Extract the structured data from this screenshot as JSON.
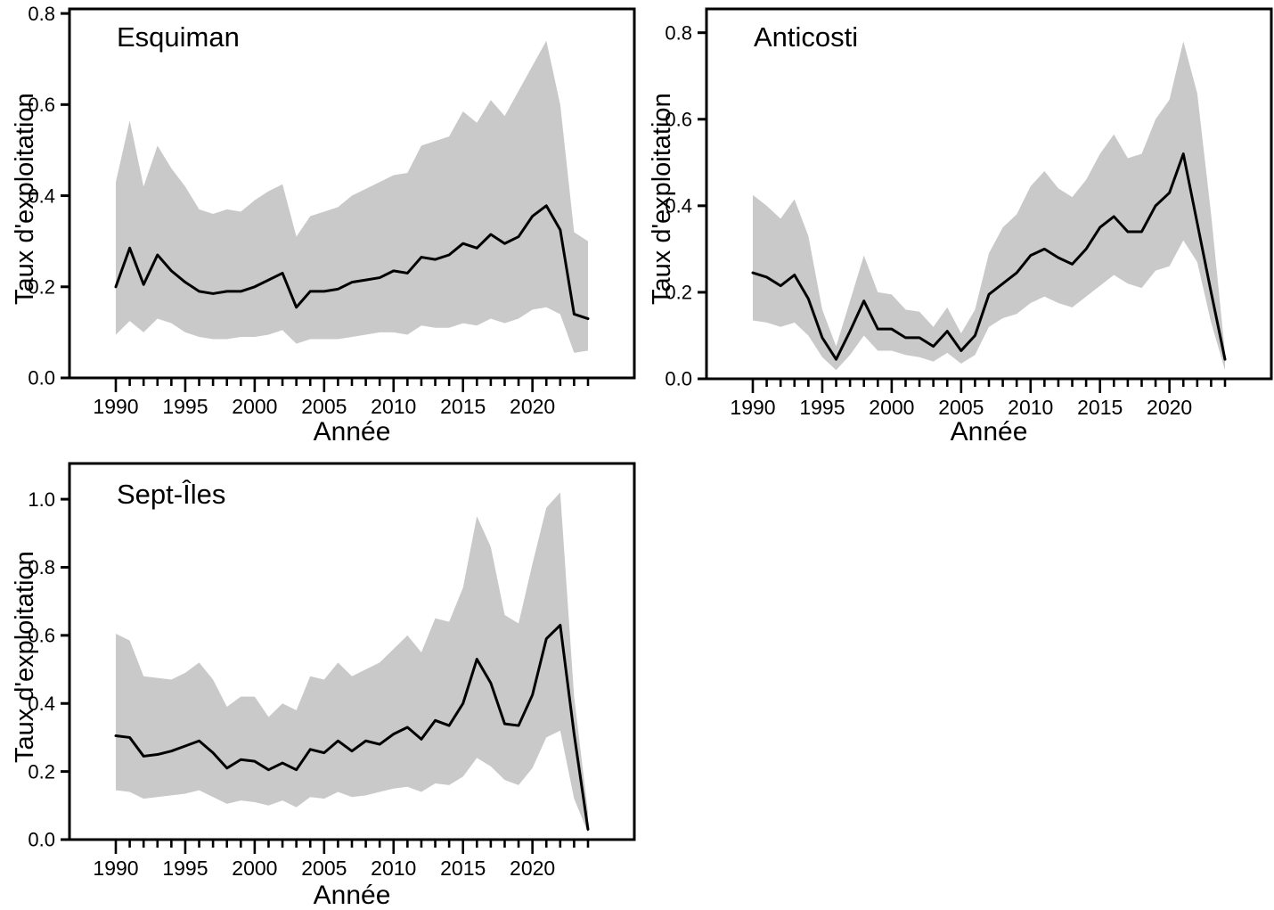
{
  "figure": {
    "description": "Three-panel scientific figure: exploitation rate time series with grey confidence bands; bottom-right quadrant empty",
    "background": "#ffffff",
    "band_color": "#c9c9c9",
    "line_color": "#000000",
    "axis_color": "#000000"
  },
  "chart_data": [
    {
      "type": "line",
      "title": "Esquiman",
      "xlabel": "Année",
      "ylabel": "Taux d'exploitation",
      "grid": false,
      "legend_position": "none",
      "ylim": [
        0,
        0.81
      ],
      "yticks": [
        0.0,
        0.2,
        0.4,
        0.6,
        0.8
      ],
      "xticks_labeled": [
        1990,
        1995,
        2000,
        2005,
        2010,
        2015,
        2020
      ],
      "xticks_minor_every": 1,
      "x": [
        1990,
        1991,
        1992,
        1993,
        1994,
        1995,
        1996,
        1997,
        1998,
        1999,
        2000,
        2001,
        2002,
        2003,
        2004,
        2005,
        2006,
        2007,
        2008,
        2009,
        2010,
        2011,
        2012,
        2013,
        2014,
        2015,
        2016,
        2017,
        2018,
        2019,
        2020,
        2021,
        2022,
        2023,
        2024
      ],
      "series": [
        {
          "name": "mean",
          "values": [
            0.2,
            0.285,
            0.205,
            0.27,
            0.235,
            0.21,
            0.19,
            0.185,
            0.19,
            0.19,
            0.2,
            0.215,
            0.23,
            0.155,
            0.19,
            0.19,
            0.195,
            0.21,
            0.215,
            0.22,
            0.235,
            0.23,
            0.265,
            0.26,
            0.27,
            0.295,
            0.285,
            0.315,
            0.295,
            0.31,
            0.355,
            0.378,
            0.325,
            0.14,
            0.13
          ]
        },
        {
          "name": "upper",
          "values": [
            0.43,
            0.565,
            0.42,
            0.51,
            0.46,
            0.42,
            0.37,
            0.36,
            0.37,
            0.365,
            0.39,
            0.41,
            0.425,
            0.31,
            0.355,
            0.365,
            0.375,
            0.4,
            0.415,
            0.43,
            0.445,
            0.45,
            0.51,
            0.52,
            0.53,
            0.585,
            0.56,
            0.61,
            0.575,
            0.63,
            0.685,
            0.74,
            0.6,
            0.32,
            0.3
          ]
        },
        {
          "name": "lower",
          "values": [
            0.095,
            0.125,
            0.1,
            0.13,
            0.12,
            0.1,
            0.09,
            0.085,
            0.085,
            0.09,
            0.09,
            0.095,
            0.105,
            0.075,
            0.085,
            0.085,
            0.085,
            0.09,
            0.095,
            0.1,
            0.1,
            0.095,
            0.115,
            0.11,
            0.11,
            0.12,
            0.115,
            0.13,
            0.12,
            0.13,
            0.15,
            0.155,
            0.14,
            0.055,
            0.06
          ]
        }
      ]
    },
    {
      "type": "line",
      "title": "Anticosti",
      "xlabel": "Année",
      "ylabel": "Taux d'exploitation",
      "grid": false,
      "legend_position": "none",
      "ylim": [
        0,
        0.855
      ],
      "yticks": [
        0.0,
        0.2,
        0.4,
        0.6,
        0.8
      ],
      "xticks_labeled": [
        1990,
        1995,
        2000,
        2005,
        2010,
        2015,
        2020
      ],
      "xticks_minor_every": 1,
      "x": [
        1990,
        1991,
        1992,
        1993,
        1994,
        1995,
        1996,
        1997,
        1998,
        1999,
        2000,
        2001,
        2002,
        2003,
        2004,
        2005,
        2006,
        2007,
        2008,
        2009,
        2010,
        2011,
        2012,
        2013,
        2014,
        2015,
        2016,
        2017,
        2018,
        2019,
        2020,
        2021,
        2022,
        2023,
        2024
      ],
      "series": [
        {
          "name": "mean",
          "values": [
            0.245,
            0.235,
            0.215,
            0.24,
            0.185,
            0.095,
            0.045,
            0.11,
            0.18,
            0.115,
            0.115,
            0.095,
            0.095,
            0.075,
            0.11,
            0.065,
            0.1,
            0.195,
            0.22,
            0.245,
            0.285,
            0.3,
            0.28,
            0.265,
            0.3,
            0.35,
            0.375,
            0.34,
            0.34,
            0.4,
            0.43,
            0.52,
            0.36,
            0.2,
            0.045
          ]
        },
        {
          "name": "upper",
          "values": [
            0.425,
            0.4,
            0.37,
            0.415,
            0.33,
            0.16,
            0.075,
            0.18,
            0.285,
            0.2,
            0.195,
            0.16,
            0.155,
            0.12,
            0.165,
            0.105,
            0.16,
            0.29,
            0.35,
            0.38,
            0.445,
            0.48,
            0.44,
            0.42,
            0.46,
            0.52,
            0.565,
            0.51,
            0.52,
            0.6,
            0.645,
            0.78,
            0.66,
            0.38,
            0.06
          ]
        },
        {
          "name": "lower",
          "values": [
            0.135,
            0.13,
            0.12,
            0.13,
            0.1,
            0.05,
            0.02,
            0.055,
            0.1,
            0.065,
            0.065,
            0.055,
            0.05,
            0.04,
            0.06,
            0.035,
            0.055,
            0.12,
            0.14,
            0.15,
            0.175,
            0.19,
            0.175,
            0.165,
            0.19,
            0.215,
            0.24,
            0.22,
            0.21,
            0.25,
            0.26,
            0.32,
            0.27,
            0.13,
            0.02
          ]
        }
      ]
    },
    {
      "type": "line",
      "title": "Sept-Îles",
      "xlabel": "Année",
      "ylabel": "Taux d'exploitation",
      "grid": false,
      "legend_position": "none",
      "ylim": [
        0,
        1.105
      ],
      "yticks": [
        0.0,
        0.2,
        0.4,
        0.6,
        0.8,
        1.0
      ],
      "xticks_labeled": [
        1990,
        1995,
        2000,
        2005,
        2010,
        2015,
        2020
      ],
      "xticks_minor_every": 1,
      "x": [
        1990,
        1991,
        1992,
        1993,
        1994,
        1995,
        1996,
        1997,
        1998,
        1999,
        2000,
        2001,
        2002,
        2003,
        2004,
        2005,
        2006,
        2007,
        2008,
        2009,
        2010,
        2011,
        2012,
        2013,
        2014,
        2015,
        2016,
        2017,
        2018,
        2019,
        2020,
        2021,
        2022,
        2023,
        2024
      ],
      "series": [
        {
          "name": "mean",
          "values": [
            0.305,
            0.3,
            0.245,
            0.25,
            0.26,
            0.275,
            0.29,
            0.255,
            0.21,
            0.235,
            0.23,
            0.205,
            0.225,
            0.205,
            0.265,
            0.255,
            0.29,
            0.26,
            0.29,
            0.28,
            0.31,
            0.33,
            0.295,
            0.35,
            0.335,
            0.4,
            0.53,
            0.46,
            0.34,
            0.335,
            0.425,
            0.59,
            0.63,
            0.31,
            0.03
          ]
        },
        {
          "name": "upper",
          "values": [
            0.605,
            0.585,
            0.48,
            0.475,
            0.47,
            0.49,
            0.52,
            0.47,
            0.39,
            0.42,
            0.42,
            0.36,
            0.4,
            0.38,
            0.48,
            0.47,
            0.52,
            0.48,
            0.5,
            0.52,
            0.56,
            0.6,
            0.55,
            0.65,
            0.64,
            0.74,
            0.95,
            0.86,
            0.66,
            0.635,
            0.81,
            0.975,
            1.02,
            0.42,
            0.08
          ]
        },
        {
          "name": "lower",
          "values": [
            0.145,
            0.14,
            0.12,
            0.125,
            0.13,
            0.135,
            0.145,
            0.125,
            0.105,
            0.115,
            0.11,
            0.1,
            0.115,
            0.095,
            0.125,
            0.12,
            0.14,
            0.125,
            0.13,
            0.14,
            0.15,
            0.155,
            0.14,
            0.165,
            0.16,
            0.185,
            0.24,
            0.215,
            0.175,
            0.16,
            0.21,
            0.3,
            0.32,
            0.12,
            0.02
          ]
        }
      ]
    }
  ]
}
